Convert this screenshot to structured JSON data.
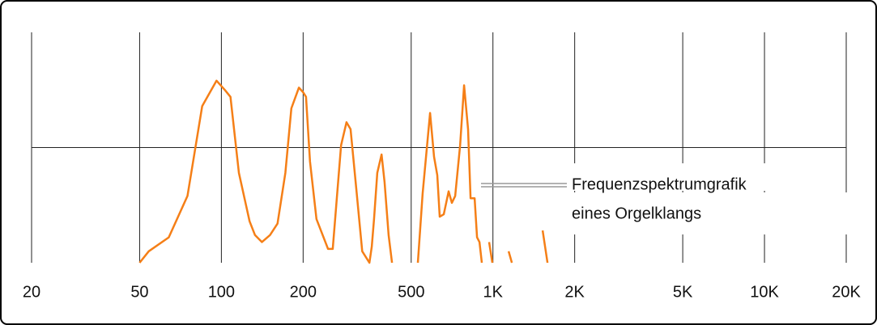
{
  "chart_data": {
    "type": "line",
    "xscale": "log",
    "xlim": [
      20,
      20000
    ],
    "xticks": [
      20,
      50,
      100,
      200,
      500,
      {
        "value": 1000,
        "label": "1K"
      },
      {
        "value": 2000,
        "label": "2K"
      },
      {
        "value": 5000,
        "label": "5K"
      },
      {
        "value": 10000,
        "label": "10K"
      },
      {
        "value": 20000,
        "label": "20K"
      }
    ],
    "ylim": [
      0,
      1
    ],
    "hline": 0.5,
    "grid": true,
    "color": "#f57f17",
    "x": [
      50,
      54,
      64,
      75,
      85,
      96,
      103,
      108,
      116,
      127,
      133,
      141,
      151,
      161,
      172,
      181,
      193,
      200,
      205,
      212,
      224,
      247,
      257,
      276,
      289,
      299,
      314,
      330,
      351,
      358,
      365,
      375,
      389,
      399,
      413,
      425,
      470,
      529,
      551,
      587,
      607,
      624,
      637,
      659,
      687,
      706,
      726,
      757,
      783,
      810,
      827,
      856,
      874,
      892,
      910,
      940,
      968,
      995,
      1100,
      1142,
      1174,
      1400,
      1524,
      1588
    ],
    "values": [
      0,
      0.05,
      0.11,
      0.29,
      0.68,
      0.79,
      0.75,
      0.72,
      0.39,
      0.18,
      0.12,
      0.09,
      0.12,
      0.17,
      0.39,
      0.67,
      0.76,
      0.74,
      0.72,
      0.44,
      0.19,
      0.06,
      0.06,
      0.51,
      0.61,
      0.58,
      0.32,
      0.05,
      0,
      0.07,
      0.19,
      0.39,
      0.47,
      0.35,
      0.12,
      0,
      null,
      0,
      0.3,
      0.65,
      0.46,
      0.38,
      0.2,
      0.21,
      0.31,
      0.26,
      0.29,
      0.51,
      0.77,
      0.58,
      0.28,
      0.28,
      0.11,
      0.09,
      0,
      null,
      0.09,
      0,
      null,
      0.05,
      0,
      null,
      0.14,
      0
    ],
    "annotation": [
      "Frequenzspektrumgrafik",
      "eines Orgelklangs"
    ]
  }
}
